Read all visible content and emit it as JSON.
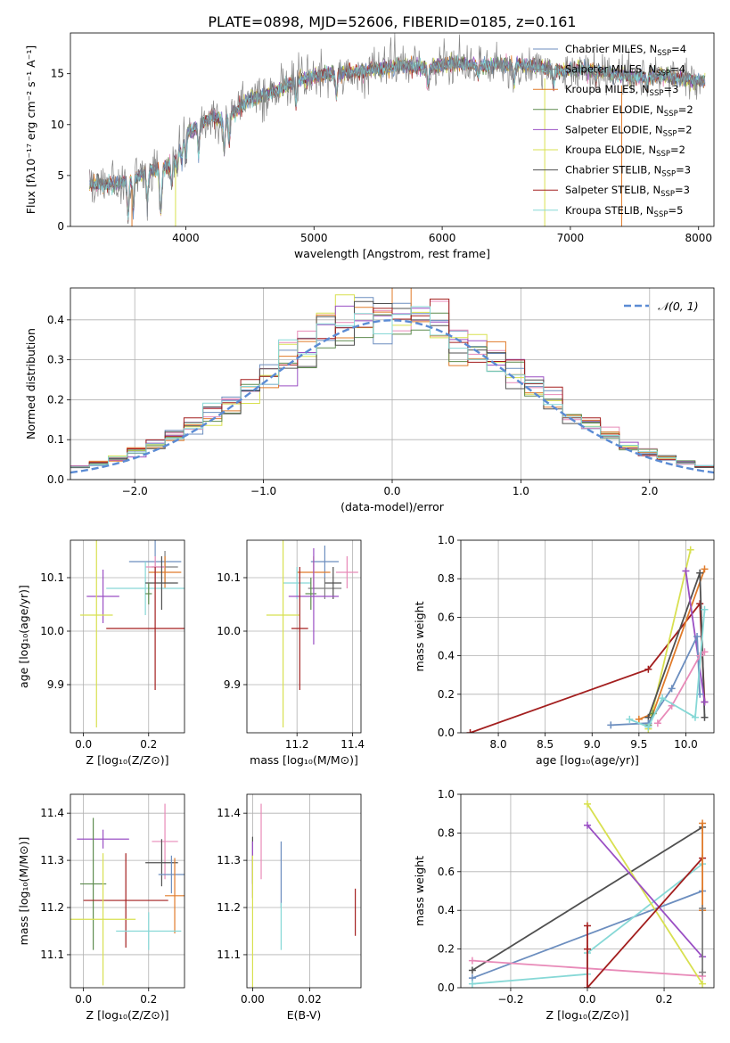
{
  "title": "PLATE=0898, MJD=52606, FIBERID=0185, z=0.161",
  "colors": [
    "#6c8ebf",
    "#7f7f7f",
    "#e07b2a",
    "#5e8c4f",
    "#9a4fc4",
    "#d8e050",
    "#505050",
    "#a31f1f",
    "#86d8d6",
    "#e88ab8"
  ],
  "chart_data": [
    {
      "id": "spectrum",
      "type": "line",
      "xlabel": "wavelength [Angstrom, rest frame]",
      "ylabel": "Flux [fλ10⁻¹⁷ erg cm⁻² s⁻¹ A⁻¹]",
      "xlim": [
        3100,
        8120
      ],
      "ylim": [
        0,
        19
      ],
      "xticks": [
        4000,
        5000,
        6000,
        7000,
        8000
      ],
      "yticks": [
        0,
        5,
        10,
        15
      ],
      "grid": false,
      "legend_position": "upper-right",
      "legend": [
        "Chabrier MILES, N_SSP=4",
        "Salpeter MILES, N_SSP=4",
        "Kroupa MILES, N_SSP=3",
        "Chabrier ELODIE, N_SSP=2",
        "Salpeter ELODIE, N_SSP=2",
        "Kroupa ELODIE, N_SSP=2",
        "Chabrier STELIB, N_SSP=3",
        "Salpeter STELIB, N_SSP=3",
        "Kroupa STELIB, N_SSP=5"
      ],
      "continuum": [
        [
          3250,
          4.1
        ],
        [
          3500,
          4.2
        ],
        [
          3700,
          5.3
        ],
        [
          3900,
          6.2
        ],
        [
          4000,
          9.0
        ],
        [
          4200,
          10.8
        ],
        [
          4300,
          10.4
        ],
        [
          4500,
          12.5
        ],
        [
          4700,
          13.2
        ],
        [
          4900,
          14.5
        ],
        [
          5100,
          15.0
        ],
        [
          5300,
          15.1
        ],
        [
          5500,
          15.5
        ],
        [
          5700,
          15.8
        ],
        [
          5900,
          15.6
        ],
        [
          6100,
          16.0
        ],
        [
          6300,
          15.8
        ],
        [
          6500,
          15.9
        ],
        [
          6700,
          15.8
        ],
        [
          6900,
          15.3
        ],
        [
          7100,
          15.5
        ],
        [
          7300,
          15.1
        ],
        [
          7500,
          14.6
        ],
        [
          7700,
          14.9
        ],
        [
          7900,
          14.4
        ],
        [
          8050,
          14.3
        ]
      ],
      "absorption": [
        [
          3550,
          3.5
        ],
        [
          3590,
          3.2
        ],
        [
          3700,
          3.0
        ],
        [
          3800,
          2.9
        ],
        [
          3810,
          2.8
        ],
        [
          3890,
          2.2
        ],
        [
          3935,
          1.8
        ],
        [
          3970,
          1.9
        ],
        [
          4000,
          2.4
        ],
        [
          4100,
          2.8
        ],
        [
          4300,
          3.0
        ],
        [
          4340,
          2.5
        ],
        [
          4860,
          2.2
        ],
        [
          5175,
          2.5
        ],
        [
          5890,
          1.8
        ],
        [
          6280,
          1.0
        ],
        [
          6560,
          2.0
        ],
        [
          6870,
          1.5
        ],
        [
          7200,
          1.2
        ],
        [
          7600,
          1.0
        ]
      ],
      "drops": [
        [
          3580,
          "#e07b2a"
        ],
        [
          3920,
          "#d8e050"
        ],
        [
          6800,
          "#d8e050"
        ],
        [
          7400,
          "#e07b2a"
        ]
      ]
    },
    {
      "id": "residual-histogram",
      "type": "histogram",
      "xlabel": "(data-model)/error",
      "ylabel": "Normed distribution",
      "xlim": [
        -2.5,
        2.5
      ],
      "ylim": [
        0,
        0.48
      ],
      "xticks": [
        -2,
        -1,
        0,
        1,
        2
      ],
      "yticks": [
        0.0,
        0.1,
        0.2,
        0.3,
        0.4
      ],
      "grid": true,
      "bins": 34,
      "legend": [
        "𝒩(0, 1)"
      ],
      "legend_position": "upper-right",
      "reference_curve": {
        "name": "𝒩(0, 1)",
        "mean": 0,
        "sigma": 1,
        "color": "#5b8bd4"
      }
    },
    {
      "id": "age-vs-z",
      "type": "errorbar",
      "xlabel": "Z [log₁₀(Z/Z⊙)]",
      "ylabel": "age  [log₁₀(age/yr)]",
      "xlim": [
        -0.04,
        0.31
      ],
      "ylim": [
        9.81,
        10.17
      ],
      "xticks": [
        0.0,
        0.2
      ],
      "yticks": [
        9.9,
        10.0,
        10.1
      ],
      "grid": true,
      "points": [
        {
          "x": 0.22,
          "y": 10.13,
          "xerr": 0.08,
          "yerr": 0.04,
          "color": "#6c8ebf"
        },
        {
          "x": 0.25,
          "y": 10.12,
          "xerr": 0.04,
          "yerr": 0.03,
          "color": "#7f7f7f"
        },
        {
          "x": 0.25,
          "y": 10.11,
          "xerr": 0.05,
          "yerr": 0.03,
          "color": "#e07b2a"
        },
        {
          "x": 0.22,
          "y": 10.12,
          "xerr": 0.03,
          "yerr": 0.02,
          "color": "#e88ab8"
        },
        {
          "x": 0.19,
          "y": 10.08,
          "xerr": 0.12,
          "yerr": 0.05,
          "color": "#86d8d6"
        },
        {
          "x": 0.06,
          "y": 10.065,
          "xerr": 0.05,
          "yerr": 0.05,
          "color": "#9a4fc4"
        },
        {
          "x": 0.24,
          "y": 10.09,
          "xerr": 0.05,
          "yerr": 0.05,
          "color": "#505050"
        },
        {
          "x": 0.2,
          "y": 10.07,
          "xerr": 0.01,
          "yerr": 0.02,
          "color": "#5e8c4f"
        },
        {
          "x": 0.04,
          "y": 10.03,
          "xerr": 0.05,
          "yerr": 0.21,
          "color": "#d8e050"
        },
        {
          "x": 0.22,
          "y": 10.005,
          "xerr": 0.15,
          "yerr": 0.115,
          "color": "#a31f1f"
        }
      ]
    },
    {
      "id": "age-vs-mass",
      "type": "errorbar",
      "xlabel": "mass [log₁₀(M/M⊙)]",
      "ylabel": "",
      "xlim": [
        11.02,
        11.43
      ],
      "ylim": [
        9.81,
        10.17
      ],
      "xticks": [
        11.2,
        11.4
      ],
      "yticks": [
        9.9,
        10.0,
        10.1
      ],
      "grid": true,
      "points": [
        {
          "x": 11.3,
          "y": 10.13,
          "xerr": 0.05,
          "yerr": 0.03,
          "color": "#6c8ebf"
        },
        {
          "x": 11.38,
          "y": 10.11,
          "xerr": 0.04,
          "yerr": 0.03,
          "color": "#e88ab8"
        },
        {
          "x": 11.26,
          "y": 10.11,
          "xerr": 0.06,
          "yerr": 0.03,
          "color": "#e07b2a"
        },
        {
          "x": 11.2,
          "y": 10.09,
          "xerr": 0.05,
          "yerr": 0.03,
          "color": "#86d8d6"
        },
        {
          "x": 11.3,
          "y": 10.08,
          "xerr": 0.06,
          "yerr": 0.02,
          "color": "#7f7f7f"
        },
        {
          "x": 11.33,
          "y": 10.09,
          "xerr": 0.03,
          "yerr": 0.03,
          "color": "#505050"
        },
        {
          "x": 11.25,
          "y": 10.07,
          "xerr": 0.02,
          "yerr": 0.03,
          "color": "#5e8c4f"
        },
        {
          "x": 11.26,
          "y": 10.065,
          "xerr": 0.09,
          "yerr": 0.09,
          "color": "#9a4fc4"
        },
        {
          "x": 11.15,
          "y": 10.03,
          "xerr": 0.06,
          "yerr": 0.21,
          "color": "#d8e050"
        },
        {
          "x": 11.21,
          "y": 10.005,
          "xerr": 0.03,
          "yerr": 0.115,
          "color": "#a31f1f"
        }
      ]
    },
    {
      "id": "mass-weight-vs-age",
      "type": "line",
      "xlabel": "age  [log₁₀(age/yr)]",
      "ylabel": "mass weight",
      "xlim": [
        7.6,
        10.3
      ],
      "ylim": [
        0,
        1
      ],
      "xticks": [
        8.0,
        8.5,
        9.0,
        9.5,
        10.0
      ],
      "yticks": [
        0.0,
        0.2,
        0.4,
        0.6,
        0.8,
        1.0
      ],
      "grid": true,
      "series": [
        {
          "color": "#a31f1f",
          "x": [
            7.7,
            9.6,
            10.15,
            10.2
          ],
          "y": [
            0.0,
            0.33,
            0.67,
            0.16
          ]
        },
        {
          "color": "#e07b2a",
          "x": [
            9.5,
            9.65,
            10.2
          ],
          "y": [
            0.07,
            0.1,
            0.85
          ]
        },
        {
          "color": "#d8e050",
          "x": [
            9.6,
            10.05
          ],
          "y": [
            0.02,
            0.95
          ]
        },
        {
          "color": "#505050",
          "x": [
            9.6,
            10.15,
            10.2
          ],
          "y": [
            0.08,
            0.83,
            0.08
          ]
        },
        {
          "color": "#9a4fc4",
          "x": [
            10.0,
            10.2
          ],
          "y": [
            0.84,
            0.16
          ]
        },
        {
          "color": "#5e8c4f",
          "x": [
            9.6,
            9.65
          ],
          "y": [
            0.04,
            0.1
          ]
        },
        {
          "color": "#6c8ebf",
          "x": [
            9.2,
            9.6,
            9.85,
            10.12,
            10.15
          ],
          "y": [
            0.04,
            0.05,
            0.23,
            0.5,
            0.2
          ]
        },
        {
          "color": "#e88ab8",
          "x": [
            9.7,
            9.85,
            10.15,
            10.2
          ],
          "y": [
            0.05,
            0.14,
            0.4,
            0.42
          ]
        },
        {
          "color": "#86d8d6",
          "x": [
            9.4,
            9.6,
            9.75,
            10.1,
            10.2
          ],
          "y": [
            0.07,
            0.03,
            0.18,
            0.08,
            0.64
          ]
        }
      ]
    },
    {
      "id": "mass-vs-z",
      "type": "errorbar",
      "xlabel": "Z [log₁₀(Z/Z⊙)]",
      "ylabel": "mass [log₁₀(M/M⊙)]",
      "xlim": [
        -0.04,
        0.31
      ],
      "ylim": [
        11.03,
        11.44
      ],
      "xticks": [
        0.0,
        0.2
      ],
      "yticks": [
        11.1,
        11.2,
        11.3,
        11.4
      ],
      "grid": true,
      "points": [
        {
          "x": 0.06,
          "y": 11.345,
          "xerr": 0.08,
          "yerr": 0.02,
          "color": "#9a4fc4"
        },
        {
          "x": 0.25,
          "y": 11.34,
          "xerr": 0.04,
          "yerr": 0.08,
          "color": "#e88ab8"
        },
        {
          "x": 0.24,
          "y": 11.295,
          "xerr": 0.05,
          "yerr": 0.05,
          "color": "#505050"
        },
        {
          "x": 0.27,
          "y": 11.27,
          "xerr": 0.04,
          "yerr": 0.04,
          "color": "#6c8ebf"
        },
        {
          "x": 0.03,
          "y": 11.25,
          "xerr": 0.04,
          "yerr": 0.14,
          "color": "#5e8c4f"
        },
        {
          "x": 0.28,
          "y": 11.225,
          "xerr": 0.03,
          "yerr": 0.08,
          "color": "#e07b2a"
        },
        {
          "x": 0.13,
          "y": 11.215,
          "xerr": 0.13,
          "yerr": 0.1,
          "color": "#a31f1f"
        },
        {
          "x": 0.06,
          "y": 11.175,
          "xerr": 0.1,
          "yerr": 0.14,
          "color": "#d8e050"
        },
        {
          "x": 0.2,
          "y": 11.15,
          "xerr": 0.1,
          "yerr": 0.04,
          "color": "#86d8d6"
        }
      ]
    },
    {
      "id": "mass-vs-ebv",
      "type": "errorbar",
      "xlabel": "E(B-V)",
      "ylabel": "",
      "xlim": [
        -0.002,
        0.038
      ],
      "ylim": [
        11.03,
        11.44
      ],
      "xticks": [
        0.0,
        0.02
      ],
      "yticks": [
        11.1,
        11.2,
        11.3,
        11.4
      ],
      "grid": true,
      "points": [
        {
          "x": 0.003,
          "y": 11.34,
          "xerr": 0.0,
          "yerr": 0.08,
          "color": "#e88ab8"
        },
        {
          "x": 0.0,
          "y": 11.3,
          "xerr": 0.0,
          "yerr": 0.05,
          "color": "#505050"
        },
        {
          "x": 0.0,
          "y": 11.28,
          "xerr": 0.0,
          "yerr": 0.06,
          "color": "#9a4fc4"
        },
        {
          "x": 0.01,
          "y": 11.27,
          "xerr": 0.0,
          "yerr": 0.07,
          "color": "#6c8ebf"
        },
        {
          "x": 0.0,
          "y": 11.17,
          "xerr": 0.0,
          "yerr": 0.14,
          "color": "#d8e050"
        },
        {
          "x": 0.01,
          "y": 11.16,
          "xerr": 0.0,
          "yerr": 0.05,
          "color": "#86d8d6"
        },
        {
          "x": 0.036,
          "y": 11.19,
          "xerr": 0.0,
          "yerr": 0.05,
          "color": "#a31f1f"
        }
      ]
    },
    {
      "id": "mass-weight-vs-z",
      "type": "line",
      "xlabel": "Z [log₁₀(Z/Z⊙)]",
      "ylabel": "mass weight",
      "xlim": [
        -0.33,
        0.33
      ],
      "ylim": [
        0,
        1
      ],
      "xticks": [
        -0.2,
        0.0,
        0.2
      ],
      "yticks": [
        0.0,
        0.2,
        0.4,
        0.6,
        0.8,
        1.0
      ],
      "grid": true,
      "series": [
        {
          "color": "#505050",
          "x": [
            -0.3,
            0.3
          ],
          "y": [
            0.09,
            0.83
          ]
        },
        {
          "color": "#6c8ebf",
          "x": [
            -0.3,
            0.3
          ],
          "y": [
            0.05,
            0.5
          ]
        },
        {
          "color": "#e88ab8",
          "x": [
            -0.3,
            0.3
          ],
          "y": [
            0.14,
            0.06
          ]
        },
        {
          "color": "#86d8d6",
          "x": [
            -0.3,
            0.0,
            0.0,
            0.3
          ],
          "y": [
            0.02,
            0.07,
            0.18,
            0.64
          ]
        },
        {
          "color": "#d8e050",
          "x": [
            0.0,
            0.3
          ],
          "y": [
            0.95,
            0.02
          ]
        },
        {
          "color": "#9a4fc4",
          "x": [
            0.0,
            0.3
          ],
          "y": [
            0.84,
            0.16
          ]
        },
        {
          "color": "#a31f1f",
          "x": [
            0.0,
            0.0,
            0.0,
            0.3
          ],
          "y": [
            0.32,
            0.2,
            0.0,
            0.67
          ]
        },
        {
          "color": "#e07b2a",
          "x": [
            0.3,
            0.3
          ],
          "y": [
            0.85,
            0.4
          ]
        },
        {
          "color": "#7f7f7f",
          "x": [
            0.3,
            0.3
          ],
          "y": [
            0.08,
            0.41
          ]
        }
      ]
    }
  ]
}
